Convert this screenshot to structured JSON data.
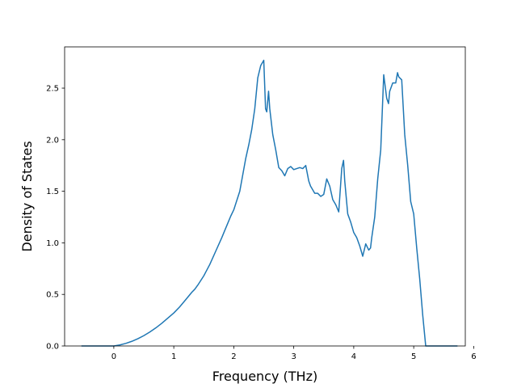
{
  "chart_data": {
    "type": "line",
    "title": "",
    "xlabel": "Frequency (THz)",
    "ylabel": "Density of States",
    "xlim": [
      -0.82,
      5.86
    ],
    "ylim": [
      0.0,
      2.9
    ],
    "grid": false,
    "legend": "none",
    "color": "#1f77b4",
    "xticks": [
      {
        "value": 0,
        "label": "0"
      },
      {
        "value": 1,
        "label": "1"
      },
      {
        "value": 2,
        "label": "2"
      },
      {
        "value": 3,
        "label": "3"
      },
      {
        "value": 4,
        "label": "4"
      },
      {
        "value": 5,
        "label": "5"
      },
      {
        "value": 6,
        "label": "6"
      }
    ],
    "yticks": [
      {
        "value": 0.0,
        "label": "0.0"
      },
      {
        "value": 0.5,
        "label": "0.5"
      },
      {
        "value": 1.0,
        "label": "1.0"
      },
      {
        "value": 1.5,
        "label": "1.5"
      },
      {
        "value": 2.0,
        "label": "2.0"
      },
      {
        "value": 2.5,
        "label": "2.5"
      }
    ],
    "series": [
      {
        "x": [
          -0.53,
          0.0,
          0.1,
          0.2,
          0.3,
          0.4,
          0.5,
          0.6,
          0.7,
          0.8,
          0.9,
          1.0,
          1.1,
          1.2,
          1.3,
          1.35,
          1.4,
          1.5,
          1.6,
          1.7,
          1.8,
          1.85,
          1.9,
          1.95,
          2.0,
          2.1,
          2.2,
          2.25,
          2.3,
          2.35,
          2.4,
          2.45,
          2.5,
          2.53,
          2.55,
          2.58,
          2.6,
          2.63,
          2.65,
          2.7,
          2.75,
          2.8,
          2.85,
          2.9,
          2.95,
          3.0,
          3.05,
          3.1,
          3.15,
          3.2,
          3.25,
          3.28,
          3.3,
          3.35,
          3.4,
          3.45,
          3.5,
          3.55,
          3.6,
          3.65,
          3.7,
          3.75,
          3.8,
          3.83,
          3.85,
          3.9,
          3.95,
          4.0,
          4.05,
          4.1,
          4.15,
          4.2,
          4.25,
          4.28,
          4.3,
          4.35,
          4.4,
          4.45,
          4.5,
          4.55,
          4.58,
          4.6,
          4.65,
          4.7,
          4.73,
          4.75,
          4.8,
          4.85,
          4.9,
          4.95,
          5.0,
          5.05,
          5.1,
          5.15,
          5.2,
          5.72
        ],
        "y": [
          0.0,
          0.0,
          0.01,
          0.025,
          0.045,
          0.07,
          0.1,
          0.135,
          0.175,
          0.22,
          0.27,
          0.32,
          0.38,
          0.45,
          0.52,
          0.55,
          0.59,
          0.68,
          0.79,
          0.92,
          1.05,
          1.12,
          1.19,
          1.26,
          1.32,
          1.5,
          1.82,
          1.95,
          2.1,
          2.3,
          2.6,
          2.72,
          2.77,
          2.3,
          2.27,
          2.47,
          2.3,
          2.15,
          2.05,
          1.9,
          1.73,
          1.7,
          1.65,
          1.72,
          1.74,
          1.71,
          1.72,
          1.73,
          1.72,
          1.75,
          1.6,
          1.55,
          1.53,
          1.48,
          1.48,
          1.45,
          1.47,
          1.62,
          1.55,
          1.42,
          1.37,
          1.3,
          1.72,
          1.8,
          1.6,
          1.28,
          1.2,
          1.1,
          1.05,
          0.97,
          0.87,
          0.99,
          0.93,
          0.95,
          1.05,
          1.25,
          1.62,
          1.9,
          2.63,
          2.4,
          2.35,
          2.47,
          2.55,
          2.55,
          2.65,
          2.61,
          2.58,
          2.05,
          1.75,
          1.4,
          1.28,
          0.95,
          0.65,
          0.3,
          0.0,
          0.0
        ]
      }
    ]
  }
}
